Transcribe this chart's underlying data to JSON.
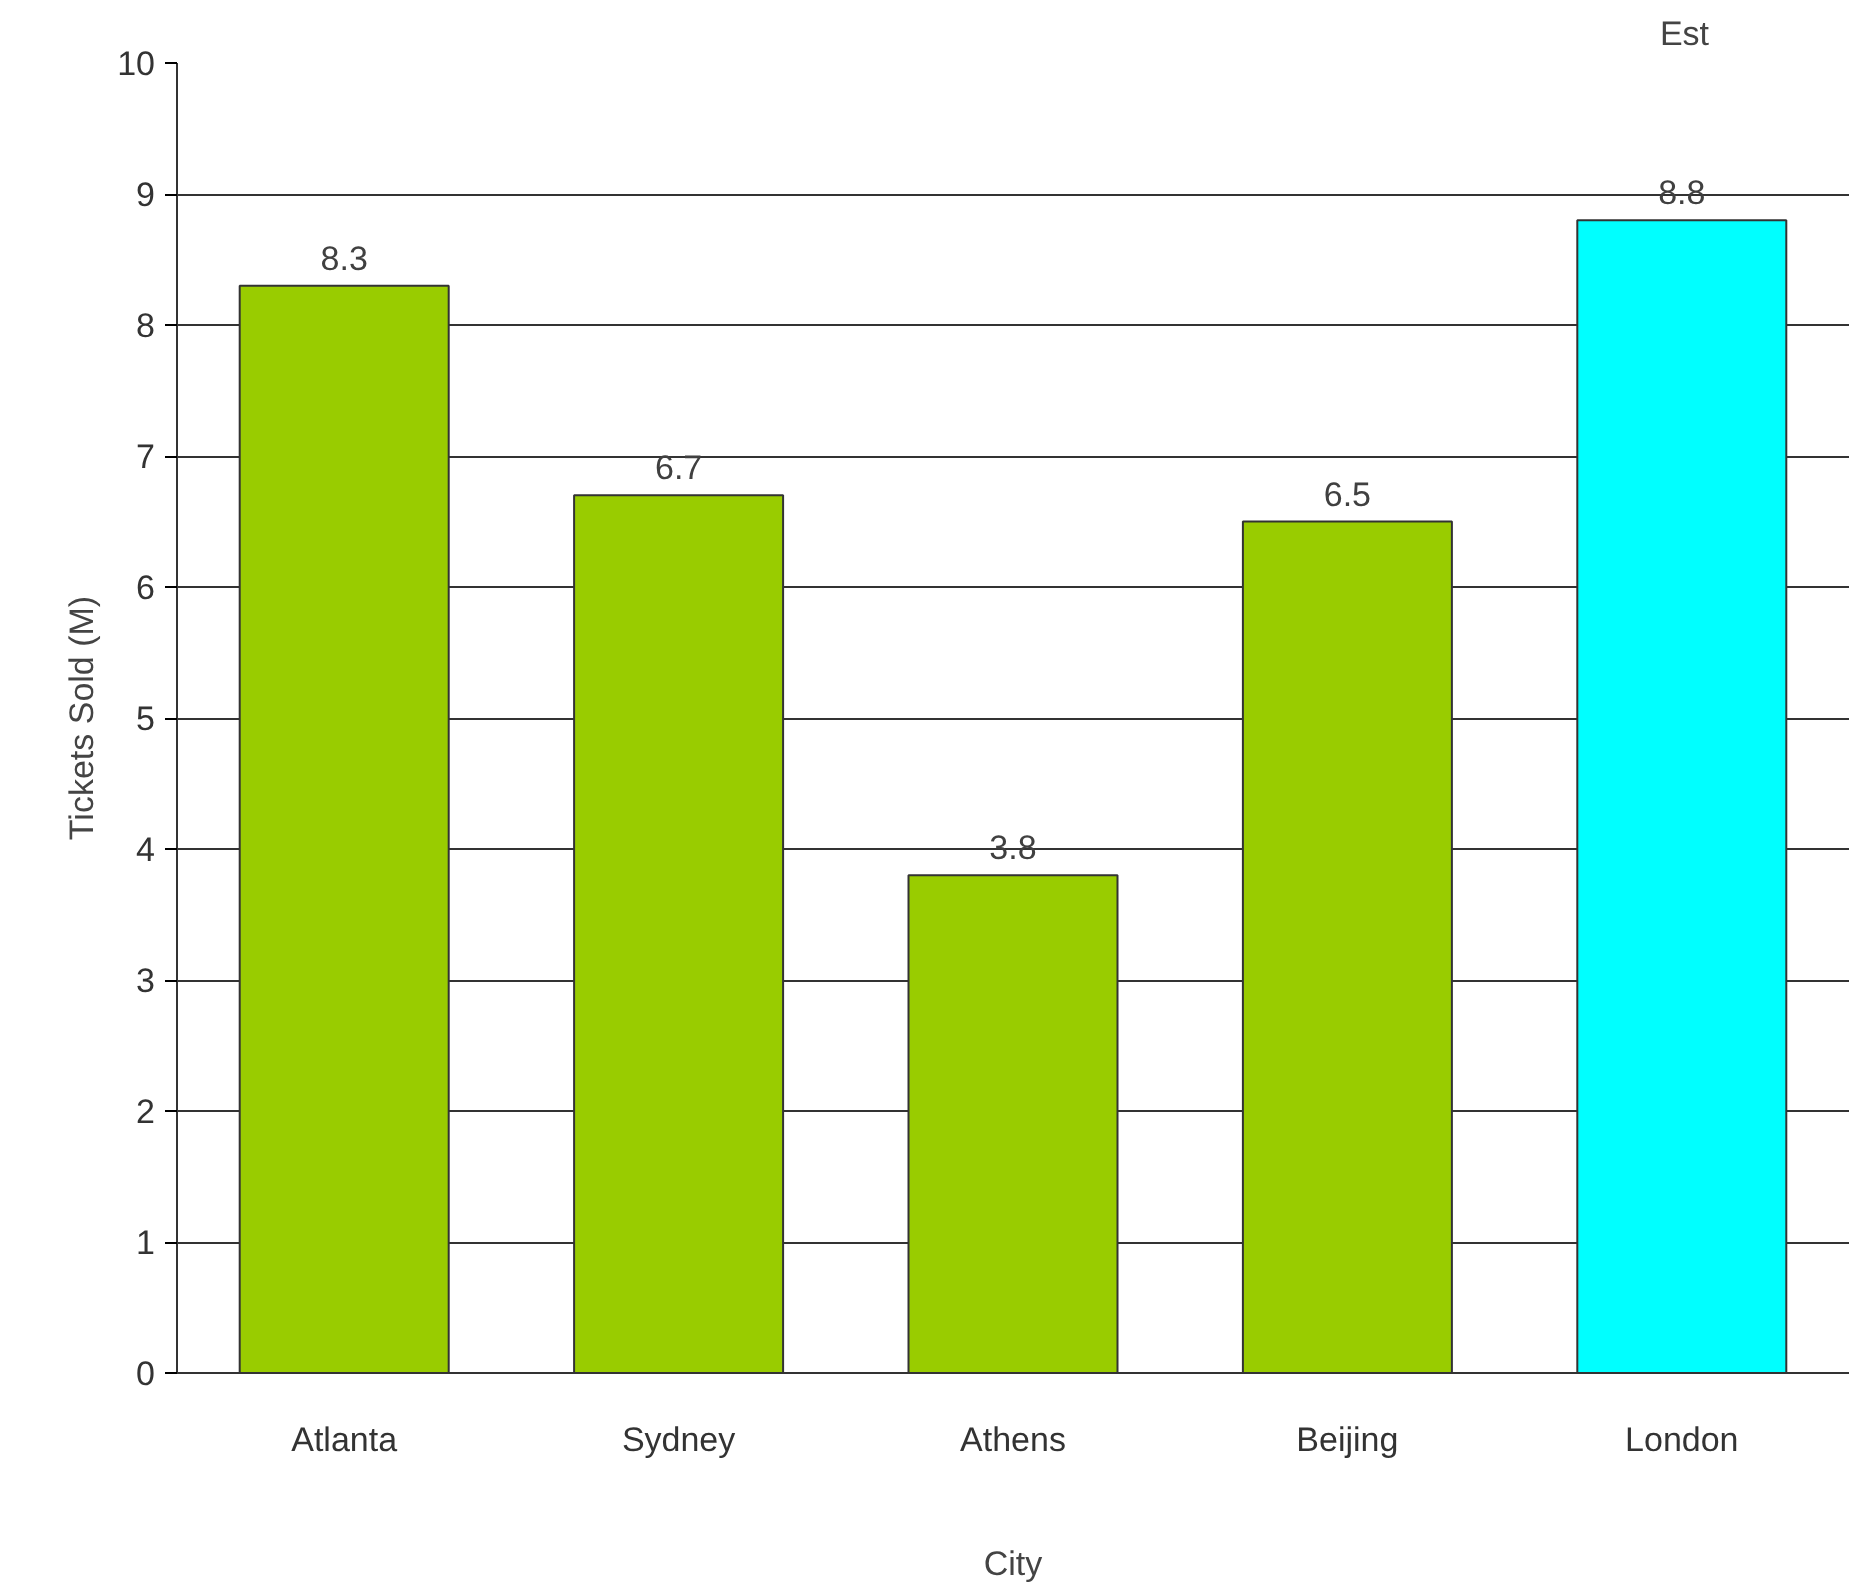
{
  "chart_data": {
    "type": "bar",
    "ylabel": "Tickets Sold (M)",
    "xlabel": "City",
    "categories": [
      "Atlanta",
      "Sydney",
      "Athens",
      "Beijing",
      "London"
    ],
    "values": [
      8.3,
      6.7,
      3.8,
      6.5,
      8.8
    ],
    "colors": [
      "#99cc00",
      "#99cc00",
      "#99cc00",
      "#99cc00",
      "#00ffff"
    ],
    "ylim": [
      0,
      10
    ],
    "yticks": [
      0,
      1,
      2,
      3,
      4,
      5,
      6,
      7,
      8,
      9,
      10
    ],
    "grid": "y",
    "data_labels": true,
    "annotations": [
      "Est"
    ]
  }
}
